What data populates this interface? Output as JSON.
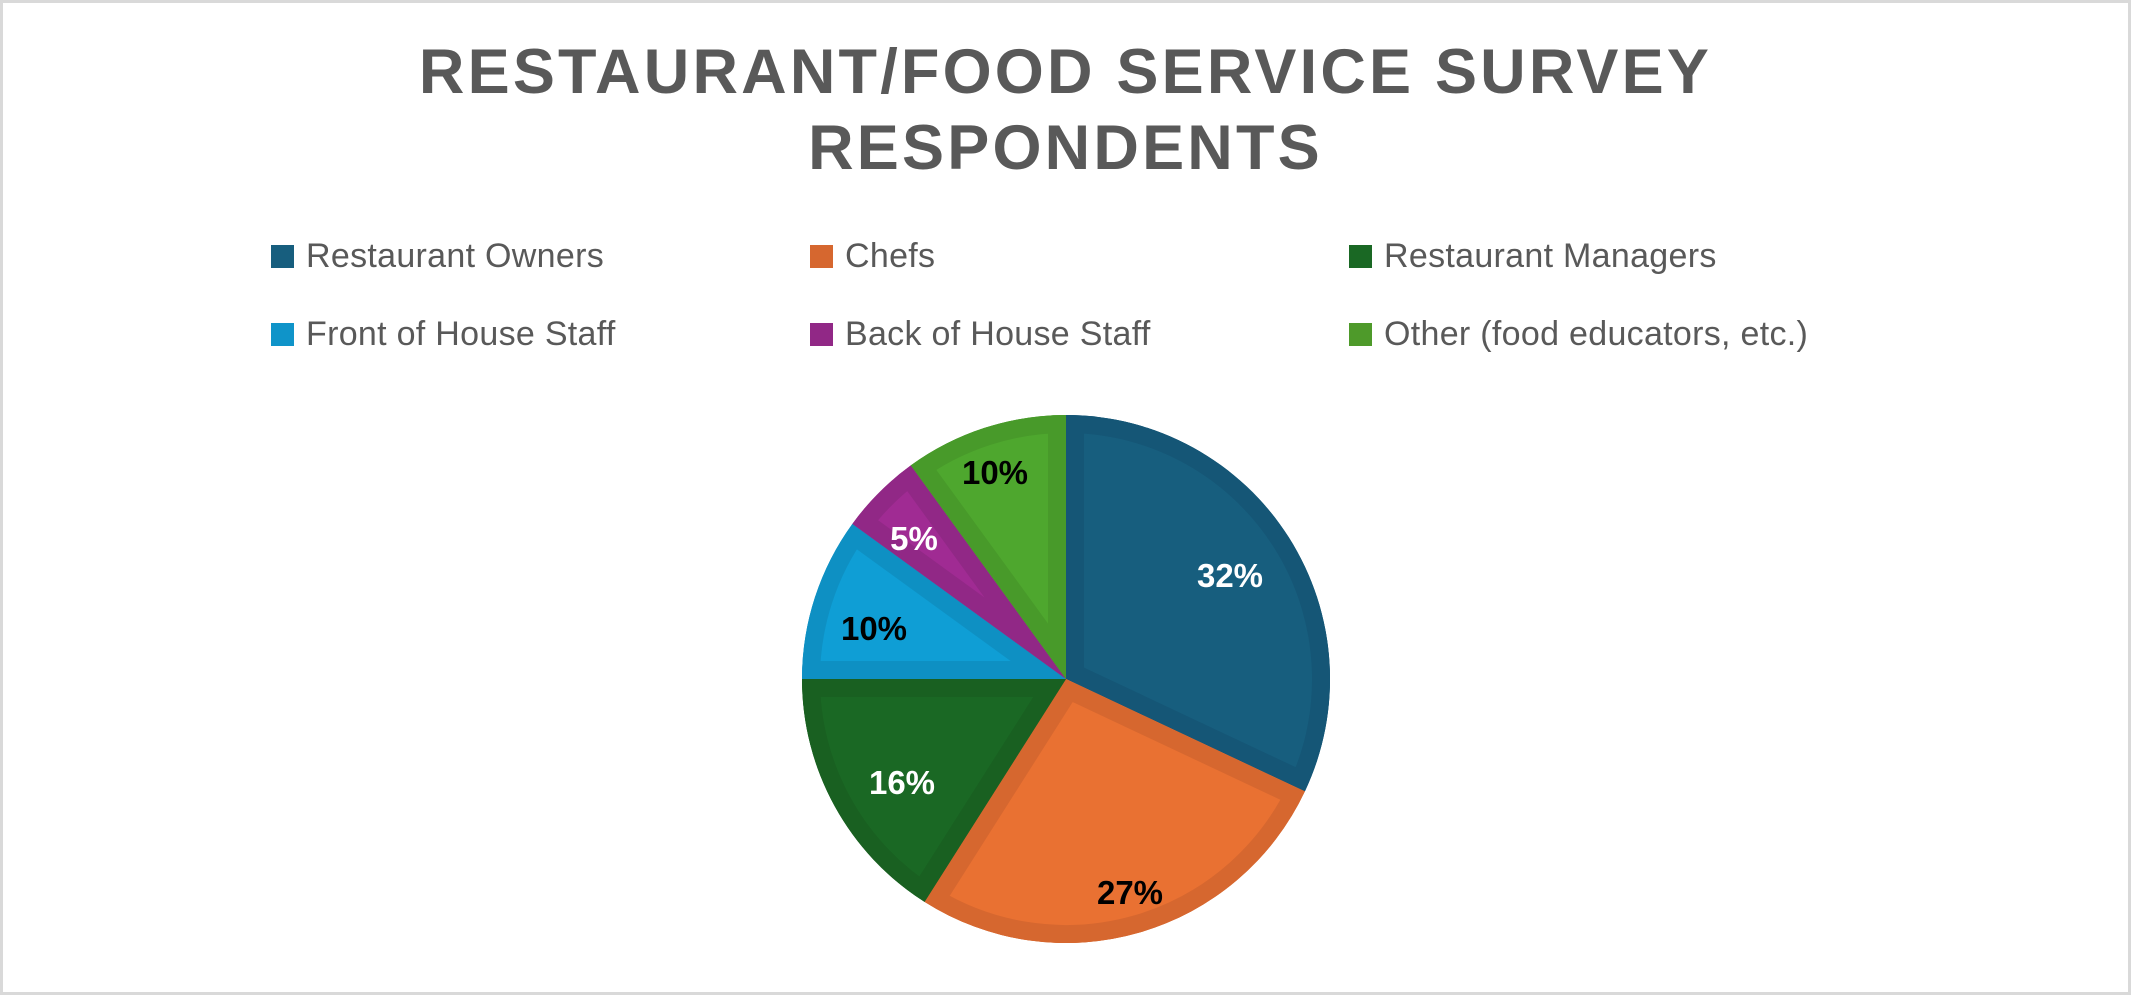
{
  "chart_data": {
    "type": "pie",
    "title": "RESTAURANT/FOOD SERVICE SURVEY RESPONDENTS",
    "title_lines": [
      "RESTAURANT/FOOD SERVICE SURVEY",
      "RESPONDENTS"
    ],
    "categories": [
      "Restaurant Owners",
      "Chefs",
      "Restaurant Managers",
      "Front of House Staff",
      "Back of House Staff",
      "Other (food educators, etc.)"
    ],
    "values": [
      32,
      27,
      16,
      10,
      5,
      10
    ],
    "data_labels": [
      "32%",
      "27%",
      "16%",
      "10%",
      "5%",
      "10%"
    ],
    "units": "percent",
    "start_angle_deg": 0,
    "direction": "clockwise",
    "legend_position": "top",
    "legend_columns": 3,
    "colors": [
      "#175e7e",
      "#e97132",
      "#1a6824",
      "#0f9ed5",
      "#a02b93",
      "#4ea72e"
    ],
    "border_colors": [
      "#155676",
      "#d6672f",
      "#196021",
      "#0e90c3",
      "#912886",
      "#489a2a"
    ],
    "label_colors": [
      "#ffffff",
      "#000000",
      "#ffffff",
      "#000000",
      "#ffffff",
      "#000000"
    ]
  },
  "title": {
    "line1": "RESTAURANT/FOOD SERVICE SURVEY",
    "line2": "RESPONDENTS",
    "color": "#595959"
  },
  "legend": {
    "items": [
      {
        "label": "Restaurant Owners",
        "color": "#175e7e"
      },
      {
        "label": "Chefs",
        "color": "#d6672f"
      },
      {
        "label": "Restaurant Managers",
        "color": "#1a6824"
      },
      {
        "label": "Front of House Staff",
        "color": "#0f94c9"
      },
      {
        "label": "Back of House Staff",
        "color": "#912886"
      },
      {
        "label": "Other (food educators, etc.)",
        "color": "#4e9a2a"
      }
    ]
  }
}
